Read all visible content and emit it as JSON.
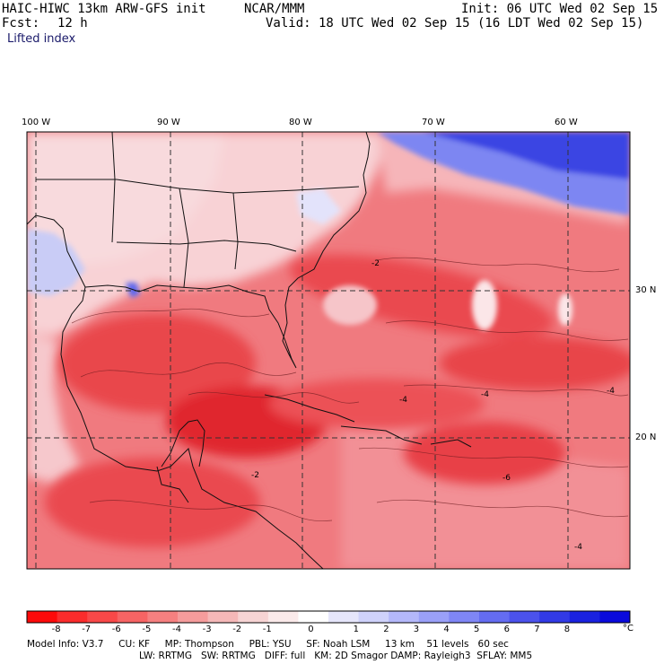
{
  "header": {
    "model_title": "HAIC-HIWC 13km ARW-GFS init",
    "org": "NCAR/MMM",
    "init": "Init: 06 UTC Wed 02 Sep 15",
    "fcst_label": "Fcst:",
    "fcst_value": "12 h",
    "valid": "Valid: 18 UTC Wed 02 Sep 15 (16 LDT Wed 02 Sep 15)",
    "field_name": "Lifted index"
  },
  "map": {
    "lon_labels": [
      "100 W",
      "90 W",
      "80 W",
      "70 W",
      "60 W"
    ],
    "lat_labels": [
      "30 N",
      "20 N"
    ],
    "contour_labels": [
      "-2",
      "-4",
      "-4",
      "-4",
      "-6",
      "-2",
      "-4"
    ],
    "colors": {
      "land_pale": "#f7d7da",
      "ocean_red": "#f0646a",
      "deep_red": "#e42a30",
      "blue_mid": "#6c78f0",
      "blue_deep": "#2a36e0"
    }
  },
  "colorbar": {
    "colors": [
      "#fd0a0a",
      "#fb2c2c",
      "#f94848",
      "#f76464",
      "#f68080",
      "#f59c9c",
      "#f5b8b8",
      "#f7d4d4",
      "#fbeaea",
      "#ffffff",
      "#e6e6fb",
      "#cfd2fb",
      "#b4b8fa",
      "#9aa0f8",
      "#7f86f5",
      "#646cf1",
      "#4b52ec",
      "#323ae6",
      "#1a22e0",
      "#0a0adc"
    ],
    "tick_labels": [
      "-8",
      "-7",
      "-6",
      "-5",
      "-4",
      "-3",
      "-2",
      "-1",
      "0",
      "1",
      "2",
      "3",
      "4",
      "5",
      "6",
      "7",
      "8"
    ],
    "unit": "°C"
  },
  "footer": {
    "line1": "Model Info: V3.7     CU: KF     MP: Thompson     PBL: YSU     SF: Noah LSM     13 km    51 levels   60 sec",
    "line2": "LW: RRTMG   SW: RRTMG   DIFF: full   KM: 2D Smagor DAMP: Rayleigh3  SFLAY: MM5"
  }
}
